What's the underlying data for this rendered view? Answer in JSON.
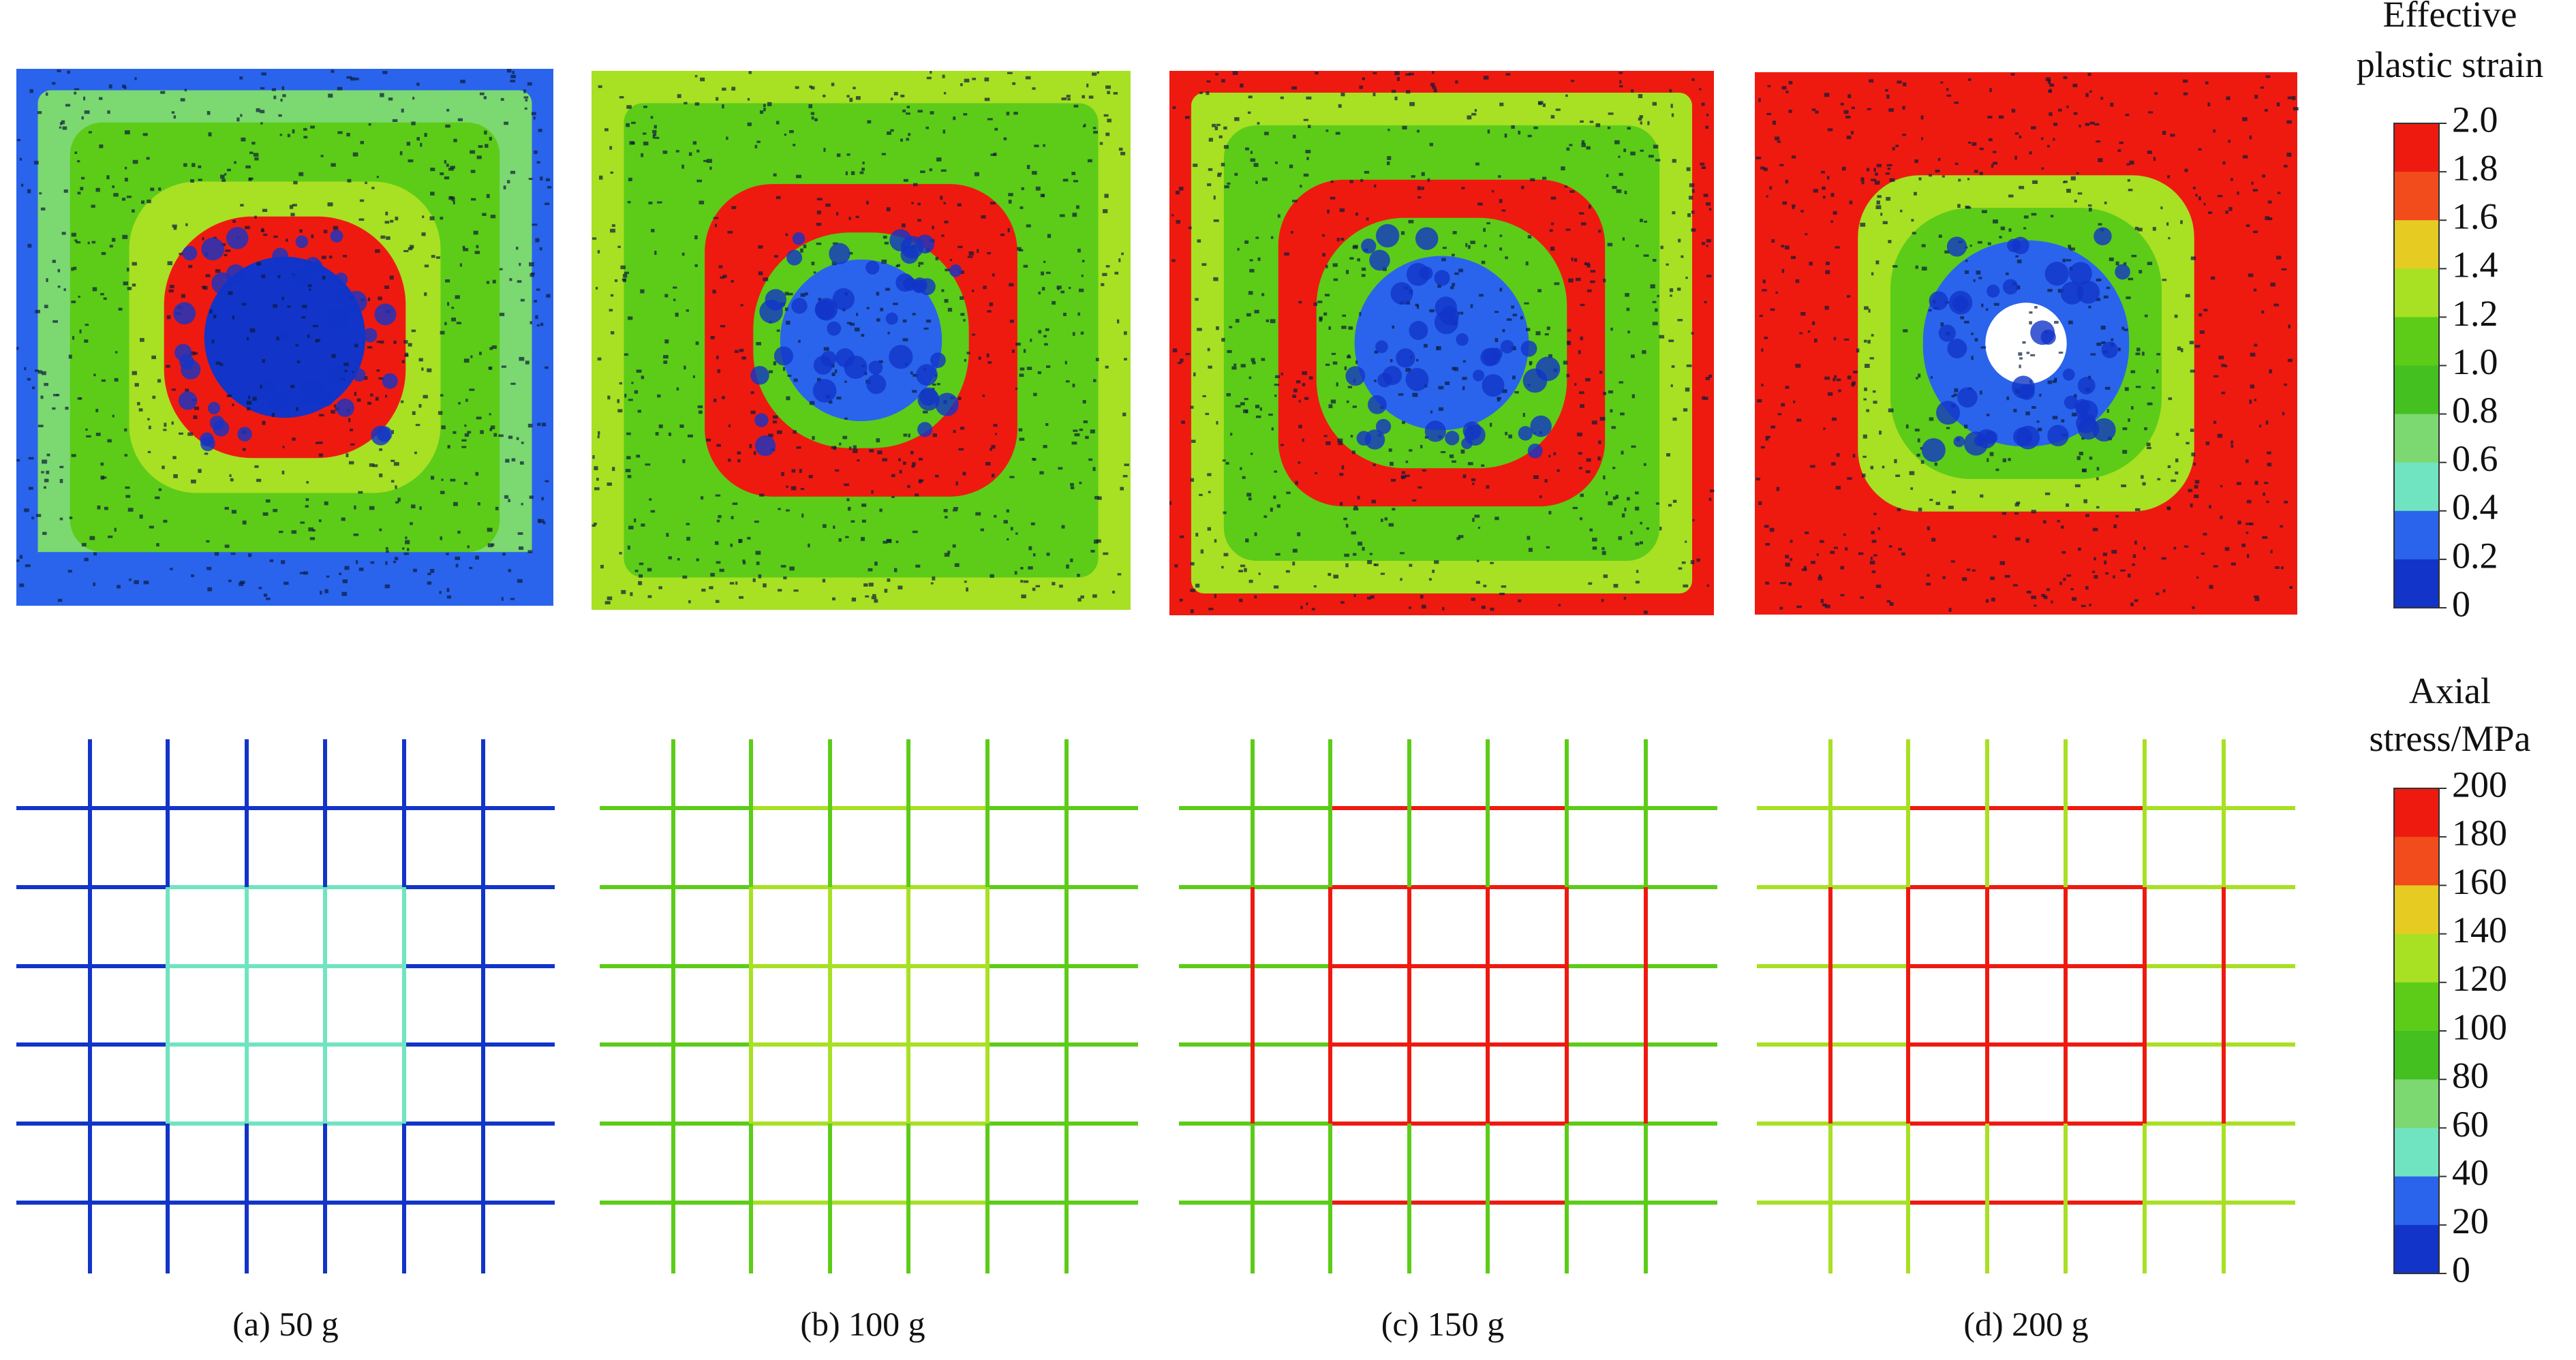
{
  "panels": [
    {
      "caption": "(a) 50 g"
    },
    {
      "caption": "(b) 100 g"
    },
    {
      "caption": "(c) 150 g"
    },
    {
      "caption": "(d) 200 g"
    }
  ],
  "colorbars": [
    {
      "title": [
        "Effective",
        "plastic strain"
      ],
      "labels": [
        "2.0",
        "1.8",
        "1.6",
        "1.4",
        "1.2",
        "1.0",
        "0.8",
        "0.6",
        "0.4",
        "0.2",
        "0"
      ]
    },
    {
      "title": [
        "Axial",
        "stress/MPa"
      ],
      "labels": [
        "200",
        "180",
        "160",
        "140",
        "120",
        "100",
        "80",
        "60",
        "40",
        "20",
        "0"
      ]
    }
  ],
  "colors": [
    "#ee1a10",
    "#f24c1c",
    "#e6cc22",
    "#a8e024",
    "#5ccc18",
    "#44c020",
    "#7cd870",
    "#70e4c0",
    "#2a64ec",
    "#1234c8"
  ]
}
